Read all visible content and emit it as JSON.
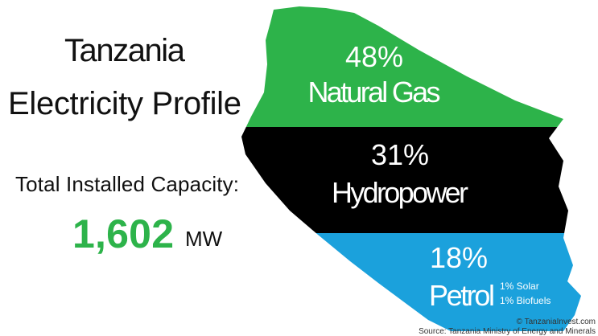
{
  "header": {
    "title_line1": "Tanzania",
    "title_line2": "Electricity Profile"
  },
  "capacity": {
    "label": "Total Installed Capacity:",
    "value": "1,602",
    "unit": "MW"
  },
  "segments": [
    {
      "percent": "48%",
      "name": "Natural Gas"
    },
    {
      "percent": "31%",
      "name": "Hydropower"
    },
    {
      "percent": "18%",
      "name": "Petrol"
    }
  ],
  "minor_sources": [
    "1% Solar",
    "1% Biofuels"
  ],
  "footer": {
    "credit": "© TanzaniaInvest.com",
    "source": "Source: Tanzania Ministry of Energy and Minerals"
  }
}
